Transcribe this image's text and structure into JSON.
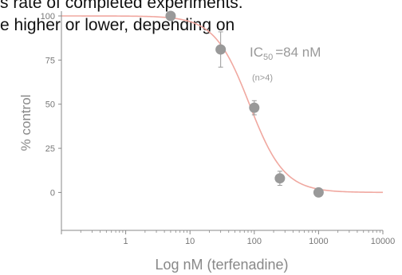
{
  "caption": {
    "line1": "s rate of completed experiments.",
    "line2": "e higher or lower, depending on"
  },
  "chart_data": {
    "type": "scatter",
    "xlabel": "Log nM (terfenadine)",
    "ylabel": "% control",
    "xscale": "log",
    "xlim": [
      0.1,
      10000
    ],
    "ylim": [
      -12,
      100
    ],
    "x_ticks": [
      {
        "value": 1,
        "label": "1"
      },
      {
        "value": 10,
        "label": "10"
      },
      {
        "value": 100,
        "label": "100"
      },
      {
        "value": 1000,
        "label": "1000"
      },
      {
        "value": 10000,
        "label": "10000"
      }
    ],
    "y_ticks": [
      {
        "value": 0,
        "label": "0"
      },
      {
        "value": 25,
        "label": "25"
      },
      {
        "value": 50,
        "label": "50"
      },
      {
        "value": 75,
        "label": "75"
      },
      {
        "value": 100,
        "label": "100"
      }
    ],
    "points": [
      {
        "x": 5,
        "y": 100,
        "err": 0
      },
      {
        "x": 30,
        "y": 81,
        "err": 10
      },
      {
        "x": 100,
        "y": 48,
        "err": 4
      },
      {
        "x": 250,
        "y": 8,
        "err": 4
      },
      {
        "x": 1000,
        "y": 0,
        "err": 0
      }
    ],
    "fit": {
      "top": 100,
      "bottom": 0,
      "ic50": 84,
      "hill": 1.6
    },
    "annotation": {
      "ic": "IC",
      "sub": "50",
      "value": "=84 nM",
      "n": "(n>4)"
    },
    "colors": {
      "fit": "#f0a8a0",
      "point": "#999999",
      "axis": "#888888"
    }
  }
}
